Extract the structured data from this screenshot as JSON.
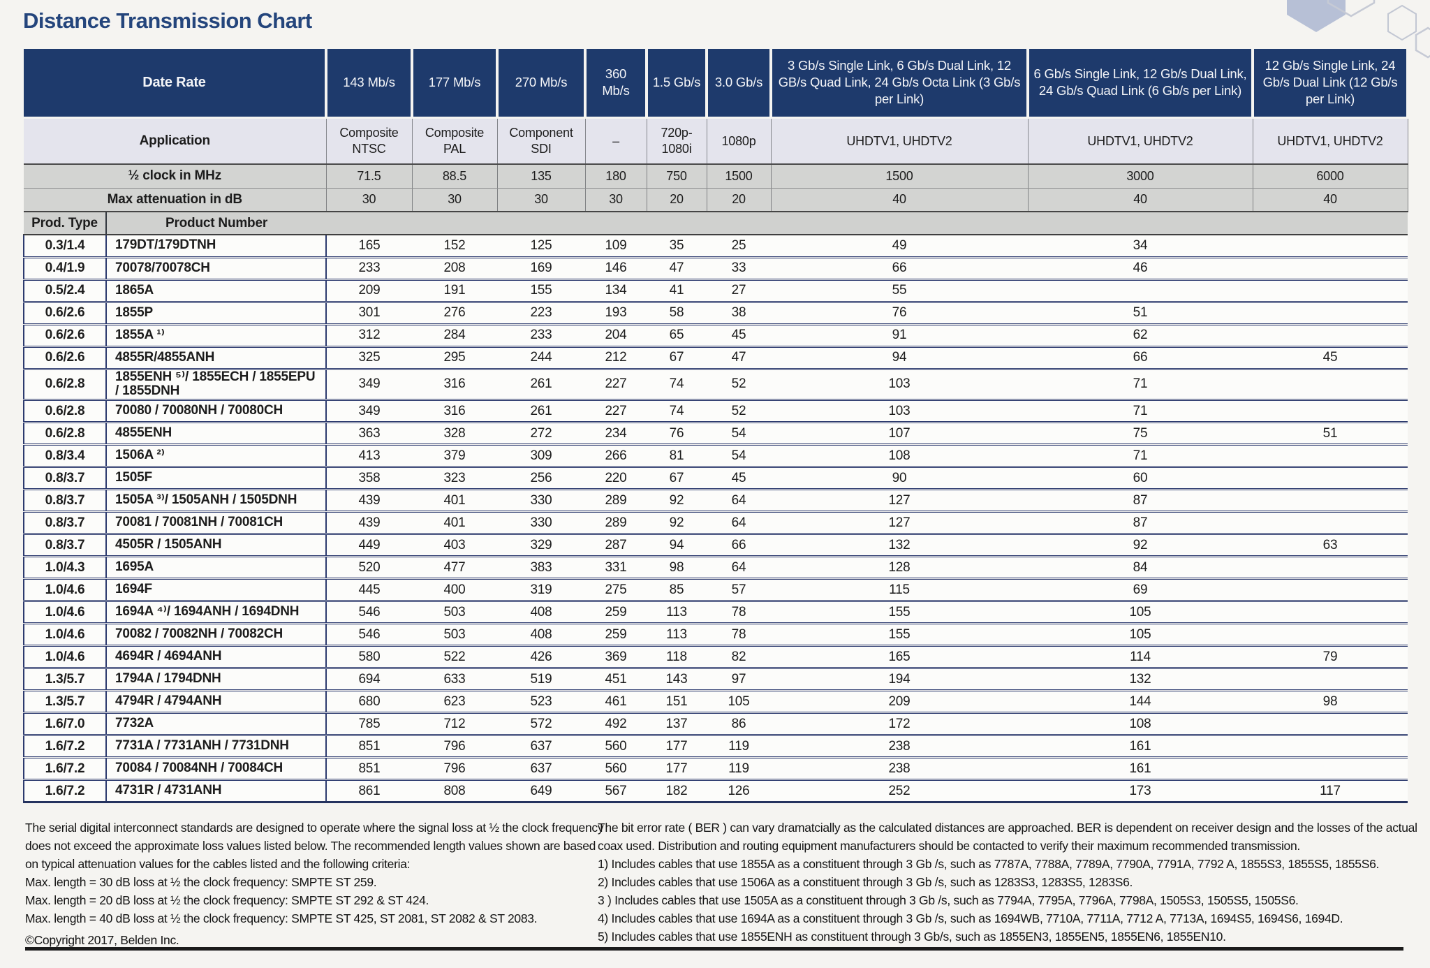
{
  "page": {
    "title": "Distance Transmission Chart"
  },
  "table": {
    "header": {
      "date_rate_label": "Date Rate",
      "application_label": "Application",
      "half_clock_label": "½ clock in MHz",
      "max_attenuation_label": "Max attenuation in dB",
      "prod_type_label": "Prod. Type",
      "product_number_label": "Product Number",
      "columns": [
        {
          "rate": "143 Mb/s",
          "application": "Composite NTSC",
          "half_clock": "71.5",
          "max_attenuation": "30"
        },
        {
          "rate": "177 Mb/s",
          "application": "Composite PAL",
          "half_clock": "88.5",
          "max_attenuation": "30"
        },
        {
          "rate": "270 Mb/s",
          "application": "Component SDI",
          "half_clock": "135",
          "max_attenuation": "30"
        },
        {
          "rate": "360 Mb/s",
          "application": "–",
          "half_clock": "180",
          "max_attenuation": "30"
        },
        {
          "rate": "1.5 Gb/s",
          "application": "720p-1080i",
          "half_clock": "750",
          "max_attenuation": "20"
        },
        {
          "rate": "3.0 Gb/s",
          "application": "1080p",
          "half_clock": "1500",
          "max_attenuation": "20"
        },
        {
          "rate": "3 Gb/s Single Link, 6 Gb/s Dual Link, 12 GB/s Quad Link, 24 Gb/s Octa Link (3 Gb/s per Link)",
          "application": "UHDTV1, UHDTV2",
          "half_clock": "1500",
          "max_attenuation": "40"
        },
        {
          "rate": "6 Gb/s Single Link, 12 Gb/s Dual Link, 24 Gb/s Quad Link (6 Gb/s per Link)",
          "application": "UHDTV1, UHDTV2",
          "half_clock": "3000",
          "max_attenuation": "40"
        },
        {
          "rate": "12 Gb/s Single Link, 24 Gb/s Dual Link (12 Gb/s per Link)",
          "application": "UHDTV1, UHDTV2",
          "half_clock": "6000",
          "max_attenuation": "40"
        }
      ]
    },
    "rows": [
      {
        "type": "0.3/1.4",
        "product": "179DT/179DTNH",
        "values": [
          "165",
          "152",
          "125",
          "109",
          "35",
          "25",
          "49",
          "34",
          ""
        ]
      },
      {
        "type": "0.4/1.9",
        "product": "70078/70078CH",
        "values": [
          "233",
          "208",
          "169",
          "146",
          "47",
          "33",
          "66",
          "46",
          ""
        ]
      },
      {
        "type": "0.5/2.4",
        "product": "1865A",
        "values": [
          "209",
          "191",
          "155",
          "134",
          "41",
          "27",
          "55",
          "",
          ""
        ]
      },
      {
        "type": "0.6/2.6",
        "product": "1855P",
        "values": [
          "301",
          "276",
          "223",
          "193",
          "58",
          "38",
          "76",
          "51",
          ""
        ]
      },
      {
        "type": "0.6/2.6",
        "product": "1855A ¹⁾",
        "values": [
          "312",
          "284",
          "233",
          "204",
          "65",
          "45",
          "91",
          "62",
          ""
        ]
      },
      {
        "type": "0.6/2.6",
        "product": "4855R/4855ANH",
        "values": [
          "325",
          "295",
          "244",
          "212",
          "67",
          "47",
          "94",
          "66",
          "45"
        ]
      },
      {
        "type": "0.6/2.8",
        "product": "1855ENH ⁵⁾/ 1855ECH / 1855EPU / 1855DNH",
        "values": [
          "349",
          "316",
          "261",
          "227",
          "74",
          "52",
          "103",
          "71",
          ""
        ]
      },
      {
        "type": "0.6/2.8",
        "product": "70080 / 70080NH / 70080CH",
        "values": [
          "349",
          "316",
          "261",
          "227",
          "74",
          "52",
          "103",
          "71",
          ""
        ]
      },
      {
        "type": "0.6/2.8",
        "product": "4855ENH",
        "values": [
          "363",
          "328",
          "272",
          "234",
          "76",
          "54",
          "107",
          "75",
          "51"
        ]
      },
      {
        "type": "0.8/3.4",
        "product": "1506A ²⁾",
        "values": [
          "413",
          "379",
          "309",
          "266",
          "81",
          "54",
          "108",
          "71",
          ""
        ]
      },
      {
        "type": "0.8/3.7",
        "product": "1505F",
        "values": [
          "358",
          "323",
          "256",
          "220",
          "67",
          "45",
          "90",
          "60",
          ""
        ]
      },
      {
        "type": "0.8/3.7",
        "product": "1505A ³⁾/ 1505ANH / 1505DNH",
        "values": [
          "439",
          "401",
          "330",
          "289",
          "92",
          "64",
          "127",
          "87",
          ""
        ]
      },
      {
        "type": "0.8/3.7",
        "product": "70081 / 70081NH / 70081CH",
        "values": [
          "439",
          "401",
          "330",
          "289",
          "92",
          "64",
          "127",
          "87",
          ""
        ]
      },
      {
        "type": "0.8/3.7",
        "product": "4505R / 1505ANH",
        "values": [
          "449",
          "403",
          "329",
          "287",
          "94",
          "66",
          "132",
          "92",
          "63"
        ]
      },
      {
        "type": "1.0/4.3",
        "product": "1695A",
        "values": [
          "520",
          "477",
          "383",
          "331",
          "98",
          "64",
          "128",
          "84",
          ""
        ]
      },
      {
        "type": "1.0/4.6",
        "product": "1694F",
        "values": [
          "445",
          "400",
          "319",
          "275",
          "85",
          "57",
          "115",
          "69",
          ""
        ]
      },
      {
        "type": "1.0/4.6",
        "product": "1694A ⁴⁾/ 1694ANH / 1694DNH",
        "values": [
          "546",
          "503",
          "408",
          "259",
          "113",
          "78",
          "155",
          "105",
          ""
        ]
      },
      {
        "type": "1.0/4.6",
        "product": "70082 / 70082NH / 70082CH",
        "values": [
          "546",
          "503",
          "408",
          "259",
          "113",
          "78",
          "155",
          "105",
          ""
        ]
      },
      {
        "type": "1.0/4.6",
        "product": "4694R / 4694ANH",
        "values": [
          "580",
          "522",
          "426",
          "369",
          "118",
          "82",
          "165",
          "114",
          "79"
        ]
      },
      {
        "type": "1.3/5.7",
        "product": "1794A / 1794DNH",
        "values": [
          "694",
          "633",
          "519",
          "451",
          "143",
          "97",
          "194",
          "132",
          ""
        ]
      },
      {
        "type": "1.3/5.7",
        "product": "4794R / 4794ANH",
        "values": [
          "680",
          "623",
          "523",
          "461",
          "151",
          "105",
          "209",
          "144",
          "98"
        ]
      },
      {
        "type": "1.6/7.0",
        "product": "7732A",
        "values": [
          "785",
          "712",
          "572",
          "492",
          "137",
          "86",
          "172",
          "108",
          ""
        ]
      },
      {
        "type": "1.6/7.2",
        "product": "7731A / 7731ANH / 7731DNH",
        "values": [
          "851",
          "796",
          "637",
          "560",
          "177",
          "119",
          "238",
          "161",
          ""
        ]
      },
      {
        "type": "1.6/7.2",
        "product": "70084 / 70084NH / 70084CH",
        "values": [
          "851",
          "796",
          "637",
          "560",
          "177",
          "119",
          "238",
          "161",
          ""
        ]
      },
      {
        "type": "1.6/7.2",
        "product": "4731R / 4731ANH",
        "values": [
          "861",
          "808",
          "649",
          "567",
          "182",
          "126",
          "252",
          "173",
          "117"
        ]
      }
    ]
  },
  "footnotes": {
    "left": {
      "intro": "The serial digital interconnect standards are designed to operate where the signal loss at ½ the clock frequency does not exceed the approximate loss values listed below. The recommended length values shown are based on typical attenuation values for the cables listed and the following criteria:",
      "criteria": [
        "Max. length = 30 dB loss at ½ the clock frequency: SMPTE ST 259.",
        "Max. length = 20 dB loss at ½ the clock frequency: SMPTE ST 292 & ST 424.",
        "Max. length = 40 dB loss at ½ the clock frequency: SMPTE ST 425, ST 2081, ST 2082 & ST 2083."
      ],
      "copyright": "©Copyright 2017, Belden Inc."
    },
    "right": {
      "intro": "The bit error rate ( BER ) can vary dramatcially as the calculated distances are approached. BER is dependent on receiver design and the losses of the actual coax used. Distribution and routing equipment manufacturers should be contacted to verify their maximum recommended transmission.",
      "notes": [
        "1) Includes cables that use 1855A as a constituent through 3 Gb /s, such as 7787A, 7788A, 7789A, 7790A, 7791A, 7792 A, 1855S3, 1855S5, 1855S6.",
        "2) Includes cables that use 1506A as a constituent through 3 Gb /s, such as 1283S3, 1283S5, 1283S6.",
        "3 ) Includes cables that use 1505A as a constituent through 3 Gb /s, such as 7794A, 7795A, 7796A, 7798A, 1505S3, 1505S5, 1505S6.",
        "4) Includes cables that use 1694A as a constituent through 3 Gb /s, such as 1694WB, 7710A, 7711A, 7712 A, 7713A, 1694S5, 1694S6, 1694D.",
        "5) Includes cables that use 1855ENH as constituent through 3 Gb/s, such as 1855EN3, 1855EN5, 1855EN6, 1855EN10."
      ]
    }
  },
  "colors": {
    "header_navy": "#1e3a6c",
    "title_blue": "#24457c",
    "row_separator_navy": "#2c3a6e",
    "gray_row": "#d3d4d2",
    "application_row": "#e4e4ed",
    "hexagon_fill": "#b7c0d6",
    "hexagon_outline": "#c2c7d3"
  }
}
